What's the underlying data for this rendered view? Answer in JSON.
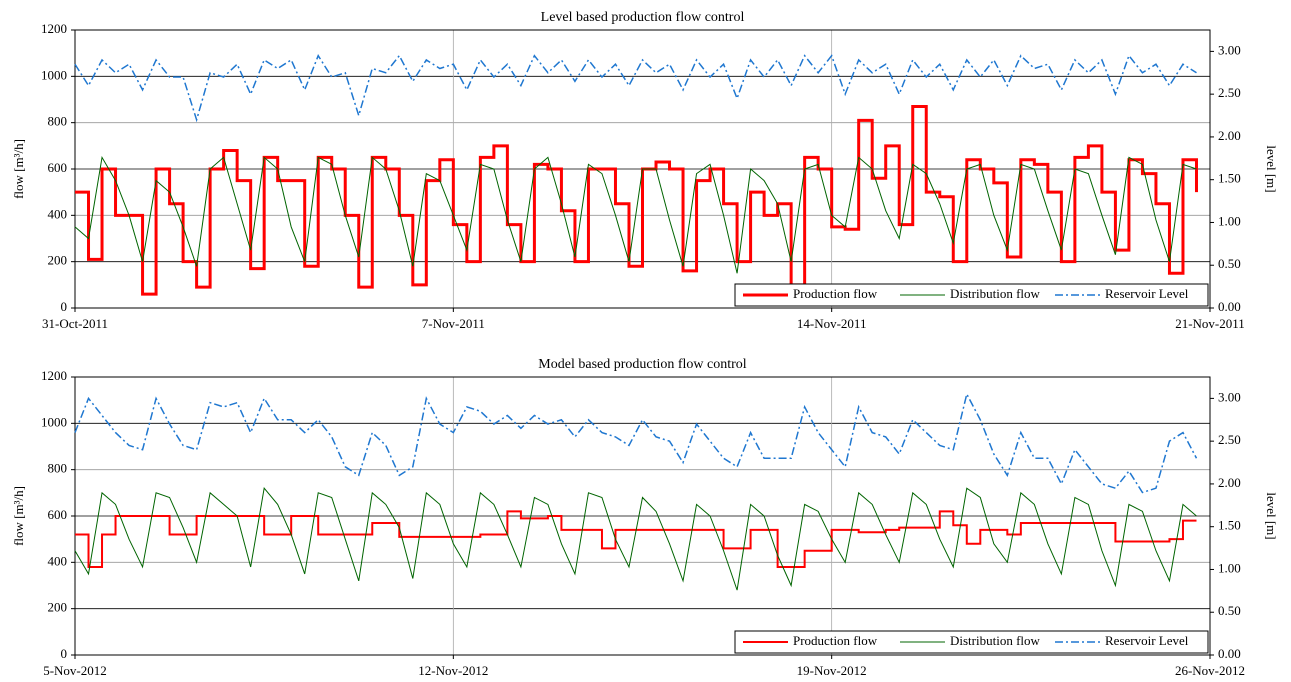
{
  "chart_data": [
    {
      "type": "line",
      "title": "Level based production flow control",
      "y_label": "flow [m³/h]",
      "y2_label": "level [m]",
      "xlim": [
        0,
        21
      ],
      "xticks": [
        {
          "value": 0,
          "label": "31-Oct-2011"
        },
        {
          "value": 7,
          "label": "7-Nov-2011"
        },
        {
          "value": 14,
          "label": "14-Nov-2011"
        },
        {
          "value": 21,
          "label": "21-Nov-2011"
        }
      ],
      "ylim": [
        0,
        1200
      ],
      "yticks": [
        0,
        200,
        400,
        600,
        800,
        1000,
        1200
      ],
      "y2lim": [
        0,
        3.25
      ],
      "y2ticks": [
        {
          "value": 0,
          "label": "0.00"
        },
        {
          "value": 0.5,
          "label": "0.50"
        },
        {
          "value": 1,
          "label": "1.00"
        },
        {
          "value": 1.5,
          "label": "1.50"
        },
        {
          "value": 2,
          "label": "2.00"
        },
        {
          "value": 2.5,
          "label": "2.50"
        },
        {
          "value": 3,
          "label": "3.00"
        }
      ],
      "grid": true,
      "legend": "lower right",
      "x": [
        0,
        0.25,
        0.5,
        0.75,
        1,
        1.25,
        1.5,
        1.75,
        2,
        2.25,
        2.5,
        2.75,
        3,
        3.25,
        3.5,
        3.75,
        4,
        4.25,
        4.5,
        4.75,
        5,
        5.25,
        5.5,
        5.75,
        6,
        6.25,
        6.5,
        6.75,
        7,
        7.25,
        7.5,
        7.75,
        8,
        8.25,
        8.5,
        8.75,
        9,
        9.25,
        9.5,
        9.75,
        10,
        10.25,
        10.5,
        10.75,
        11,
        11.25,
        11.5,
        11.75,
        12,
        12.25,
        12.5,
        12.75,
        13,
        13.25,
        13.5,
        13.75,
        14,
        14.25,
        14.5,
        14.75,
        15,
        15.25,
        15.5,
        15.75,
        16,
        16.25,
        16.5,
        16.75,
        17,
        17.25,
        17.5,
        17.75,
        18,
        18.25,
        18.5,
        18.75,
        19,
        19.25,
        19.5,
        19.75,
        20,
        20.25,
        20.5,
        20.75
      ],
      "series": [
        {
          "name": "Production flow",
          "color": "#ff0000",
          "linewidth": 3,
          "step": true,
          "values": [
            500,
            210,
            600,
            400,
            400,
            60,
            600,
            450,
            200,
            90,
            600,
            680,
            550,
            170,
            650,
            550,
            550,
            180,
            650,
            600,
            400,
            90,
            650,
            600,
            400,
            100,
            550,
            640,
            360,
            200,
            650,
            700,
            360,
            200,
            620,
            600,
            420,
            200,
            600,
            600,
            450,
            180,
            600,
            630,
            600,
            160,
            550,
            600,
            450,
            200,
            500,
            400,
            450,
            100,
            650,
            600,
            350,
            340,
            810,
            560,
            700,
            360,
            870,
            500,
            480,
            200,
            640,
            600,
            540,
            220,
            640,
            620,
            500,
            200,
            650,
            700,
            500,
            250,
            640,
            580,
            450,
            150,
            640,
            500
          ]
        },
        {
          "name": "Distribution flow",
          "color": "#006400",
          "linewidth": 1,
          "values": [
            350,
            300,
            650,
            550,
            400,
            200,
            550,
            500,
            350,
            180,
            600,
            650,
            450,
            250,
            650,
            600,
            350,
            200,
            650,
            620,
            400,
            220,
            650,
            600,
            420,
            180,
            580,
            550,
            400,
            250,
            620,
            600,
            380,
            200,
            600,
            650,
            450,
            220,
            620,
            580,
            400,
            200,
            600,
            600,
            380,
            180,
            580,
            620,
            400,
            150,
            600,
            550,
            450,
            200,
            600,
            620,
            400,
            350,
            650,
            600,
            420,
            300,
            620,
            580,
            450,
            280,
            600,
            620,
            400,
            250,
            620,
            600,
            420,
            250,
            600,
            580,
            400,
            230,
            650,
            620,
            380,
            200,
            620,
            600
          ]
        },
        {
          "name": "Reservoir Level",
          "color": "#1f77d0",
          "linewidth": 1.5,
          "linestyle": "dashdot",
          "axis": "y2",
          "values": [
            2.85,
            2.6,
            2.9,
            2.75,
            2.85,
            2.55,
            2.9,
            2.7,
            2.7,
            2.2,
            2.75,
            2.7,
            2.85,
            2.5,
            2.9,
            2.8,
            2.9,
            2.55,
            2.95,
            2.7,
            2.75,
            2.25,
            2.8,
            2.75,
            2.95,
            2.65,
            2.9,
            2.8,
            2.85,
            2.55,
            2.9,
            2.7,
            2.85,
            2.6,
            2.95,
            2.75,
            2.9,
            2.65,
            2.9,
            2.7,
            2.85,
            2.6,
            2.9,
            2.75,
            2.85,
            2.55,
            2.9,
            2.7,
            2.85,
            2.45,
            2.9,
            2.7,
            2.9,
            2.6,
            2.95,
            2.75,
            2.95,
            2.5,
            2.9,
            2.75,
            2.85,
            2.5,
            2.9,
            2.7,
            2.85,
            2.55,
            2.9,
            2.7,
            2.9,
            2.6,
            2.95,
            2.8,
            2.85,
            2.55,
            2.9,
            2.75,
            2.9,
            2.5,
            2.95,
            2.75,
            2.85,
            2.6,
            2.85,
            2.75
          ]
        }
      ]
    },
    {
      "type": "line",
      "title": "Model based production flow control",
      "y_label": "flow [m³/h]",
      "y2_label": "level [m]",
      "xlim": [
        0,
        21
      ],
      "xticks": [
        {
          "value": 0,
          "label": "5-Nov-2012"
        },
        {
          "value": 7,
          "label": "12-Nov-2012"
        },
        {
          "value": 14,
          "label": "19-Nov-2012"
        },
        {
          "value": 21,
          "label": "26-Nov-2012"
        }
      ],
      "ylim": [
        0,
        1200
      ],
      "yticks": [
        0,
        200,
        400,
        600,
        800,
        1000,
        1200
      ],
      "y2lim": [
        0,
        3.25
      ],
      "y2ticks": [
        {
          "value": 0,
          "label": "0.00"
        },
        {
          "value": 0.5,
          "label": "0.50"
        },
        {
          "value": 1,
          "label": "1.00"
        },
        {
          "value": 1.5,
          "label": "1.50"
        },
        {
          "value": 2,
          "label": "2.00"
        },
        {
          "value": 2.5,
          "label": "2.50"
        },
        {
          "value": 3,
          "label": "3.00"
        }
      ],
      "grid": true,
      "legend": "lower right",
      "x": [
        0,
        0.25,
        0.5,
        0.75,
        1,
        1.25,
        1.5,
        1.75,
        2,
        2.25,
        2.5,
        2.75,
        3,
        3.25,
        3.5,
        3.75,
        4,
        4.25,
        4.5,
        4.75,
        5,
        5.25,
        5.5,
        5.75,
        6,
        6.25,
        6.5,
        6.75,
        7,
        7.25,
        7.5,
        7.75,
        8,
        8.25,
        8.5,
        8.75,
        9,
        9.25,
        9.5,
        9.75,
        10,
        10.25,
        10.5,
        10.75,
        11,
        11.25,
        11.5,
        11.75,
        12,
        12.25,
        12.5,
        12.75,
        13,
        13.25,
        13.5,
        13.75,
        14,
        14.25,
        14.5,
        14.75,
        15,
        15.25,
        15.5,
        15.75,
        16,
        16.25,
        16.5,
        16.75,
        17,
        17.25,
        17.5,
        17.75,
        18,
        18.25,
        18.5,
        18.75,
        19,
        19.25,
        19.5,
        19.75,
        20,
        20.25,
        20.5,
        20.75
      ],
      "series": [
        {
          "name": "Production flow",
          "color": "#ff0000",
          "linewidth": 2,
          "step": true,
          "values": [
            520,
            380,
            520,
            600,
            600,
            600,
            600,
            520,
            520,
            600,
            600,
            600,
            600,
            600,
            520,
            520,
            600,
            600,
            520,
            520,
            520,
            520,
            570,
            570,
            510,
            510,
            510,
            510,
            510,
            510,
            520,
            520,
            620,
            590,
            590,
            600,
            540,
            540,
            540,
            460,
            540,
            540,
            540,
            540,
            540,
            540,
            540,
            540,
            460,
            460,
            540,
            540,
            380,
            380,
            450,
            450,
            540,
            540,
            530,
            530,
            540,
            550,
            550,
            550,
            620,
            560,
            480,
            540,
            540,
            520,
            570,
            570,
            570,
            570,
            570,
            570,
            570,
            490,
            490,
            490,
            490,
            500,
            580,
            580
          ]
        },
        {
          "name": "Distribution flow",
          "color": "#006400",
          "linewidth": 1,
          "values": [
            450,
            350,
            700,
            650,
            500,
            380,
            700,
            680,
            550,
            400,
            700,
            650,
            600,
            380,
            720,
            650,
            520,
            350,
            700,
            680,
            500,
            320,
            700,
            650,
            550,
            330,
            700,
            650,
            480,
            380,
            700,
            650,
            520,
            380,
            680,
            650,
            480,
            350,
            700,
            680,
            500,
            380,
            680,
            620,
            480,
            320,
            650,
            600,
            450,
            280,
            650,
            600,
            430,
            300,
            650,
            620,
            500,
            400,
            700,
            650,
            520,
            400,
            700,
            650,
            500,
            380,
            720,
            680,
            480,
            400,
            700,
            650,
            480,
            350,
            680,
            650,
            450,
            300,
            650,
            620,
            450,
            320,
            650,
            600
          ]
        },
        {
          "name": "Reservoir Level",
          "color": "#1f77d0",
          "linewidth": 1.5,
          "linestyle": "dashdot",
          "axis": "y2",
          "values": [
            2.6,
            3.0,
            2.8,
            2.6,
            2.45,
            2.4,
            3.0,
            2.7,
            2.45,
            2.4,
            2.95,
            2.9,
            2.95,
            2.6,
            3.0,
            2.75,
            2.75,
            2.6,
            2.75,
            2.55,
            2.2,
            2.1,
            2.6,
            2.45,
            2.1,
            2.2,
            3.0,
            2.7,
            2.6,
            2.9,
            2.85,
            2.7,
            2.8,
            2.65,
            2.8,
            2.7,
            2.75,
            2.55,
            2.75,
            2.6,
            2.55,
            2.45,
            2.75,
            2.55,
            2.5,
            2.25,
            2.7,
            2.5,
            2.3,
            2.2,
            2.6,
            2.3,
            2.3,
            2.3,
            2.9,
            2.6,
            2.4,
            2.2,
            2.9,
            2.6,
            2.55,
            2.35,
            2.75,
            2.6,
            2.45,
            2.4,
            3.05,
            2.75,
            2.35,
            2.1,
            2.6,
            2.3,
            2.3,
            2.0,
            2.4,
            2.2,
            2.0,
            1.95,
            2.15,
            1.9,
            1.95,
            2.5,
            2.6,
            2.3
          ]
        }
      ]
    }
  ]
}
